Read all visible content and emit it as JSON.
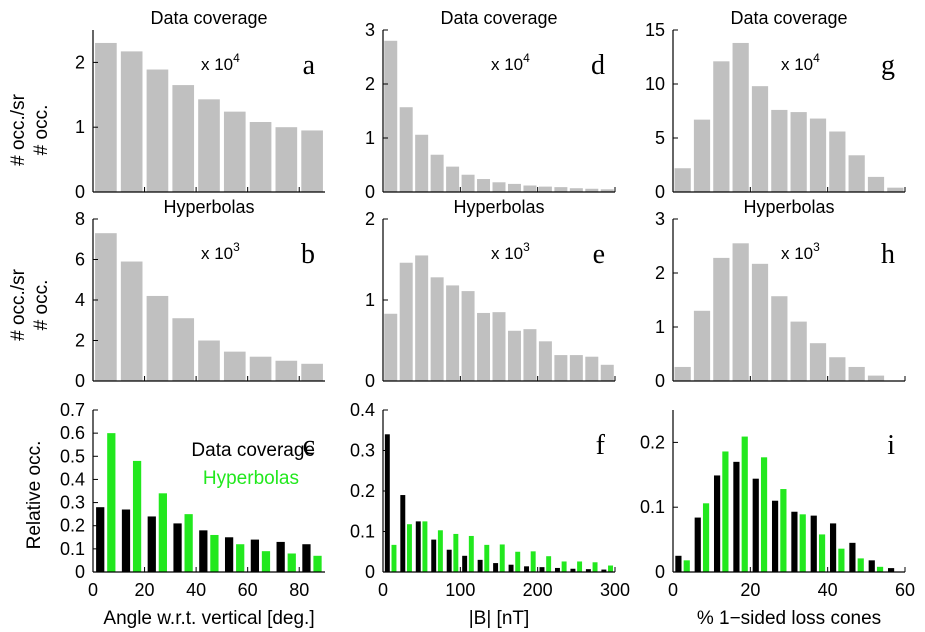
{
  "colors": {
    "gray": "#c0c0c0",
    "black": "#000000",
    "green": "#22e81e",
    "axis": "#000000"
  },
  "ylabels": {
    "top": [
      "# occ./sr",
      "# occ."
    ],
    "mid": [
      "# occ./sr",
      "# occ."
    ],
    "bottom": "Relative occ."
  },
  "chart_data": [
    {
      "id": "a",
      "type": "bar",
      "title": "Data coverage",
      "multiplier_base": "x 10",
      "multiplier_exp": "4",
      "letter": "a",
      "x": [
        5,
        15,
        25,
        35,
        45,
        55,
        65,
        75,
        85
      ],
      "values": [
        2.3,
        2.17,
        1.89,
        1.65,
        1.43,
        1.24,
        1.08,
        1.0,
        0.95
      ],
      "xlim": [
        0,
        90
      ],
      "ylim": [
        0,
        2.5
      ],
      "yticks": [
        0,
        1,
        2
      ],
      "xticks": [
        0,
        20,
        40,
        60,
        80
      ],
      "ylabel": "# occ./sr"
    },
    {
      "id": "d",
      "type": "bar",
      "title": "Data coverage",
      "multiplier_base": "x 10",
      "multiplier_exp": "4",
      "letter": "d",
      "x": [
        10,
        30,
        50,
        70,
        90,
        110,
        130,
        150,
        170,
        190,
        210,
        230,
        250,
        270,
        290
      ],
      "values": [
        2.8,
        1.57,
        1.06,
        0.69,
        0.47,
        0.32,
        0.24,
        0.18,
        0.15,
        0.12,
        0.1,
        0.09,
        0.07,
        0.06,
        0.05
      ],
      "xlim": [
        0,
        300
      ],
      "ylim": [
        0,
        3
      ],
      "yticks": [
        0,
        1,
        2,
        3
      ],
      "xticks": [
        0,
        100,
        200,
        300
      ],
      "ylabel": "# occ."
    },
    {
      "id": "g",
      "type": "bar",
      "title": "Data coverage",
      "multiplier_base": "x 10",
      "multiplier_exp": "4",
      "letter": "g",
      "x": [
        2.5,
        7.5,
        12.5,
        17.5,
        22.5,
        27.5,
        32.5,
        37.5,
        42.5,
        47.5,
        52.5,
        57.5
      ],
      "values": [
        2.2,
        6.7,
        12.1,
        13.8,
        9.8,
        7.6,
        7.4,
        6.8,
        5.6,
        3.4,
        1.4,
        0.4
      ],
      "xlim": [
        0,
        60
      ],
      "ylim": [
        0,
        15
      ],
      "yticks": [
        0,
        5,
        10,
        15
      ],
      "xticks": [
        0,
        20,
        40,
        60
      ],
      "ylabel": "# occ."
    },
    {
      "id": "b",
      "type": "bar",
      "title": "Hyperbolas",
      "multiplier_base": "x 10",
      "multiplier_exp": "3",
      "letter": "b",
      "x": [
        5,
        15,
        25,
        35,
        45,
        55,
        65,
        75,
        85
      ],
      "values": [
        7.3,
        5.9,
        4.2,
        3.1,
        2.0,
        1.45,
        1.2,
        1.0,
        0.85
      ],
      "xlim": [
        0,
        90
      ],
      "ylim": [
        0,
        8
      ],
      "yticks": [
        0,
        2,
        4,
        6,
        8
      ],
      "xticks": [
        0,
        20,
        40,
        60,
        80
      ],
      "ylabel": "# occ./sr"
    },
    {
      "id": "e",
      "type": "bar",
      "title": "Hyperbolas",
      "multiplier_base": "x 10",
      "multiplier_exp": "3",
      "letter": "e",
      "x": [
        10,
        30,
        50,
        70,
        90,
        110,
        130,
        150,
        170,
        190,
        210,
        230,
        250,
        270,
        290
      ],
      "values": [
        0.83,
        1.46,
        1.55,
        1.28,
        1.18,
        1.11,
        0.84,
        0.85,
        0.62,
        0.64,
        0.49,
        0.32,
        0.32,
        0.3,
        0.2
      ],
      "xlim": [
        0,
        300
      ],
      "ylim": [
        0,
        2
      ],
      "yticks": [
        0,
        1,
        2
      ],
      "xticks": [
        0,
        100,
        200,
        300
      ],
      "ylabel": "# occ."
    },
    {
      "id": "h",
      "type": "bar",
      "title": "Hyperbolas",
      "multiplier_base": "x 10",
      "multiplier_exp": "3",
      "letter": "h",
      "x": [
        2.5,
        7.5,
        12.5,
        17.5,
        22.5,
        27.5,
        32.5,
        37.5,
        42.5,
        47.5,
        52.5,
        57.5
      ],
      "values": [
        0.26,
        1.3,
        2.28,
        2.55,
        2.17,
        1.57,
        1.1,
        0.7,
        0.44,
        0.26,
        0.1,
        0.0
      ],
      "xlim": [
        0,
        60
      ],
      "ylim": [
        0,
        3
      ],
      "yticks": [
        0,
        1,
        2,
        3
      ],
      "xticks": [
        0,
        20,
        40,
        60
      ],
      "ylabel": "# occ."
    },
    {
      "id": "c",
      "type": "bar",
      "letter": "c",
      "legend": [
        "Data coverage",
        "Hyperbolas"
      ],
      "x": [
        5,
        15,
        25,
        35,
        45,
        55,
        65,
        75,
        85
      ],
      "series": [
        {
          "name": "Data coverage",
          "color": "black",
          "values": [
            0.28,
            0.27,
            0.24,
            0.21,
            0.18,
            0.15,
            0.14,
            0.13,
            0.12
          ]
        },
        {
          "name": "Hyperbolas",
          "color": "green",
          "values": [
            0.6,
            0.48,
            0.34,
            0.25,
            0.16,
            0.12,
            0.09,
            0.08,
            0.07
          ]
        }
      ],
      "xlim": [
        0,
        90
      ],
      "ylim": [
        0,
        0.7
      ],
      "yticks": [
        0,
        0.1,
        0.2,
        0.3,
        0.4,
        0.5,
        0.6,
        0.7
      ],
      "xticks": [
        0,
        20,
        40,
        60,
        80
      ],
      "xlabel": "Angle w.r.t. vertical [deg.]",
      "ylabel": "Relative occ."
    },
    {
      "id": "f",
      "type": "bar",
      "letter": "f",
      "x": [
        10,
        30,
        50,
        70,
        90,
        110,
        130,
        150,
        170,
        190,
        210,
        230,
        250,
        270,
        290
      ],
      "series": [
        {
          "name": "Data coverage",
          "color": "black",
          "values": [
            0.34,
            0.19,
            0.125,
            0.08,
            0.055,
            0.04,
            0.03,
            0.022,
            0.018,
            0.014,
            0.012,
            0.01,
            0.008,
            0.007,
            0.006
          ]
        },
        {
          "name": "Hyperbolas",
          "color": "green",
          "values": [
            0.067,
            0.118,
            0.125,
            0.103,
            0.094,
            0.089,
            0.067,
            0.068,
            0.05,
            0.051,
            0.039,
            0.026,
            0.026,
            0.024,
            0.016
          ]
        }
      ],
      "xlim": [
        0,
        300
      ],
      "ylim": [
        0,
        0.4
      ],
      "yticks": [
        0,
        0.1,
        0.2,
        0.3,
        0.4
      ],
      "xticks": [
        0,
        100,
        200,
        300
      ],
      "xlabel": "|B| [nT]"
    },
    {
      "id": "i",
      "type": "bar",
      "letter": "i",
      "x": [
        2.5,
        7.5,
        12.5,
        17.5,
        22.5,
        27.5,
        32.5,
        37.5,
        42.5,
        47.5,
        52.5,
        57.5
      ],
      "series": [
        {
          "name": "Data coverage",
          "color": "black",
          "values": [
            0.025,
            0.084,
            0.149,
            0.17,
            0.144,
            0.11,
            0.093,
            0.087,
            0.075,
            0.045,
            0.018,
            0.006
          ]
        },
        {
          "name": "Hyperbolas",
          "color": "green",
          "values": [
            0.018,
            0.106,
            0.186,
            0.209,
            0.177,
            0.128,
            0.089,
            0.058,
            0.036,
            0.021,
            0.008,
            0.0
          ]
        }
      ],
      "xlim": [
        0,
        60
      ],
      "ylim": [
        0,
        0.25
      ],
      "yticks": [
        0,
        0.1,
        0.2
      ],
      "xticks": [
        0,
        20,
        40,
        60
      ],
      "xlabel": "% 1−sided loss cones"
    }
  ]
}
